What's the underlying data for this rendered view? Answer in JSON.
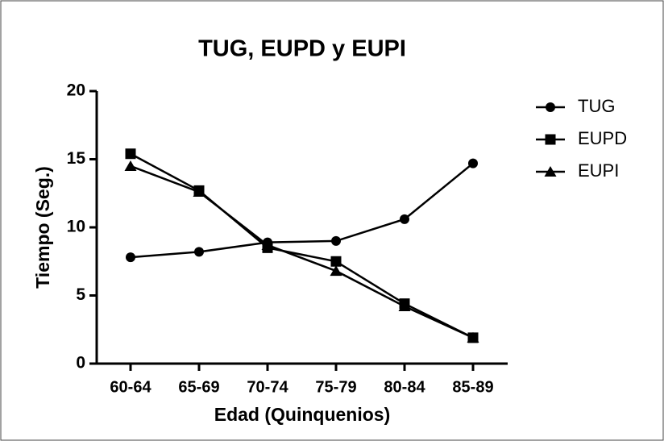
{
  "chart_data": {
    "type": "line",
    "title": "TUG, EUPD y EUPI",
    "x_label": "Edad  (Quinquenios)",
    "y_label": "Tiempo (Seg.)",
    "categories": [
      "60-64",
      "65-69",
      "70-74",
      "75-79",
      "80-84",
      "85-89"
    ],
    "series": [
      {
        "name": "TUG",
        "color": "#000000",
        "marker": "circle",
        "values": [
          7.8,
          8.2,
          8.9,
          9.0,
          10.6,
          14.7
        ]
      },
      {
        "name": "EUPD",
        "color": "#000000",
        "marker": "square",
        "values": [
          15.4,
          12.7,
          8.5,
          7.5,
          4.4,
          1.9
        ]
      },
      {
        "name": "EUPI",
        "color": "#000000",
        "marker": "triangle",
        "values": [
          14.5,
          12.6,
          8.7,
          6.8,
          4.2,
          1.9
        ]
      }
    ],
    "ylim": [
      0,
      20
    ],
    "yticks": [
      0,
      5,
      10,
      15,
      20
    ],
    "grid": false,
    "legend": "right"
  }
}
